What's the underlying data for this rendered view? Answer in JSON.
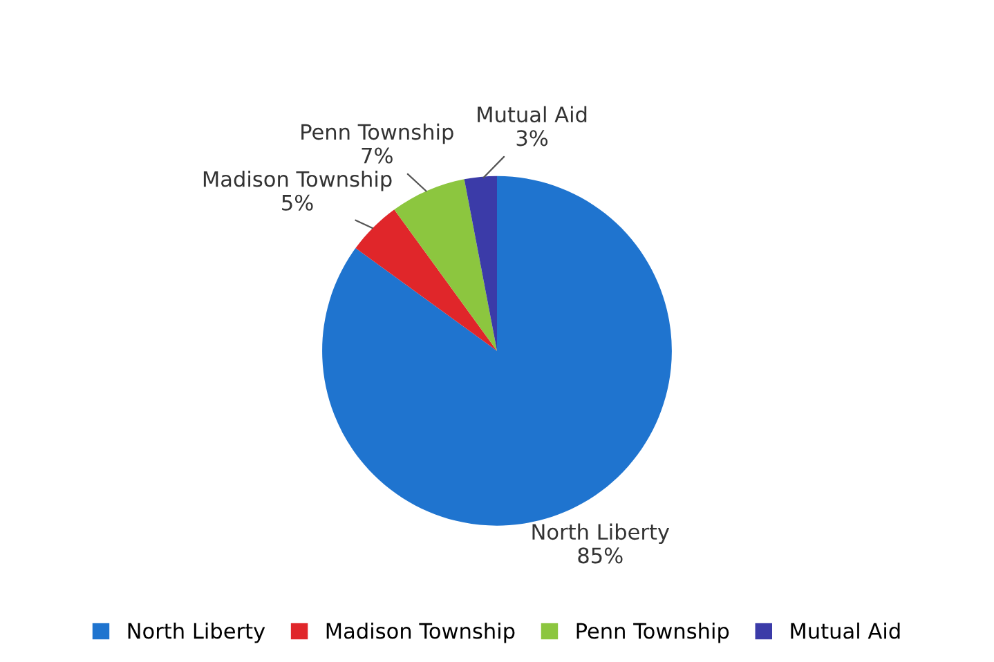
{
  "chart_data": {
    "type": "pie",
    "categories": [
      "North Liberty",
      "Madison Township",
      "Penn Township",
      "Mutual Aid"
    ],
    "values": [
      85,
      5,
      7,
      3
    ],
    "value_labels": [
      "85%",
      "5%",
      "7%",
      "3%"
    ],
    "colors": [
      "#1f74cf",
      "#e0262a",
      "#8cc63f",
      "#3b3ba8"
    ],
    "legend": "bottom"
  }
}
